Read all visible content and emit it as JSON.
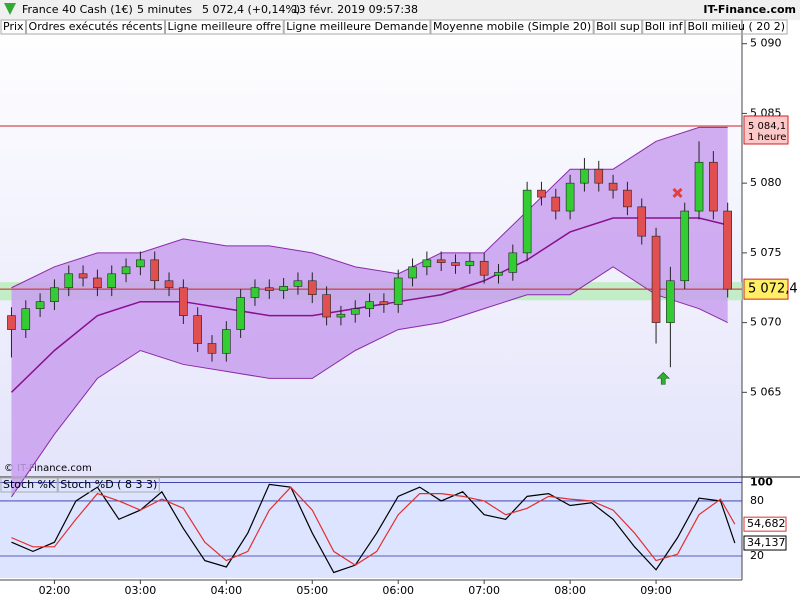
{
  "header": {
    "instrument": "France 40 Cash (1€)",
    "period": "5 minutes",
    "quote": "5 072,4 (+0,14%)",
    "timestamp": "13 févr. 2019 09:57:38",
    "brand": "IT-Finance.com",
    "watermark": "© IT-Finance.com"
  },
  "chart_data": [
    {
      "type": "candlestick",
      "legend": [
        {
          "name": "Prix",
          "color": "#000000"
        },
        {
          "name": "Ordres exécutés récents",
          "color": "#e06060"
        },
        {
          "name": "Ligne meilleure offre",
          "color": "#60d060"
        },
        {
          "name": "Ligne meilleure Demande",
          "color": "#e06060"
        },
        {
          "name": "Moyenne mobile (Simple 20)",
          "color": "#c00030"
        },
        {
          "name": "Boll sup",
          "color": "#2020c0"
        },
        {
          "name": "Boll inf",
          "color": "#2020c0"
        },
        {
          "name": "Boll milieu ( 20 2)",
          "color": "#2020c0"
        }
      ],
      "xlim": [
        "01:22",
        "10:00"
      ],
      "ylim": [
        5059,
        5091.7
      ],
      "yticks": [
        {
          "value": 5065,
          "label": "5 065"
        },
        {
          "value": 5070,
          "label": "5 070"
        },
        {
          "value": 5075,
          "label": "5 075"
        },
        {
          "value": 5080,
          "label": "5 080"
        },
        {
          "value": 5085,
          "label": "5 085"
        },
        {
          "value": 5090,
          "label": "5 090"
        }
      ],
      "candles": {
        "up_color": "#33cc33",
        "down_color": "#e05050",
        "x": [
          "01:30",
          "01:40",
          "01:50",
          "02:00",
          "02:10",
          "02:20",
          "02:30",
          "02:40",
          "02:50",
          "03:00",
          "03:10",
          "03:20",
          "03:30",
          "03:40",
          "03:50",
          "04:00",
          "04:10",
          "04:20",
          "04:30",
          "04:40",
          "04:50",
          "05:00",
          "05:10",
          "05:20",
          "05:30",
          "05:40",
          "05:50",
          "06:00",
          "06:10",
          "06:20",
          "06:30",
          "06:40",
          "06:50",
          "07:00",
          "07:10",
          "07:20",
          "07:30",
          "07:40",
          "07:50",
          "08:00",
          "08:10",
          "08:20",
          "08:30",
          "08:40",
          "08:50",
          "09:00",
          "09:10",
          "09:20",
          "09:30",
          "09:40",
          "09:50"
        ],
        "open": [
          5070.5,
          5069.5,
          5071,
          5071.5,
          5072.5,
          5073.5,
          5073.2,
          5072.5,
          5073.5,
          5074,
          5074.5,
          5073,
          5072.5,
          5070.5,
          5068.5,
          5067.8,
          5069.5,
          5071.8,
          5072.5,
          5072.3,
          5072.6,
          5073,
          5072,
          5070.4,
          5070.6,
          5071,
          5071.5,
          5071.3,
          5073.2,
          5074,
          5074.5,
          5074.3,
          5074.1,
          5074.4,
          5073.4,
          5073.6,
          5075,
          5079.5,
          5079,
          5078,
          5080,
          5081,
          5080,
          5079.5,
          5078.3,
          5076.2,
          5070,
          5073,
          5078,
          5081.5,
          5078
        ],
        "high": [
          5071.1,
          5071.6,
          5072.1,
          5073.1,
          5074.1,
          5074.1,
          5073.8,
          5074.1,
          5074.6,
          5075.1,
          5075.1,
          5073.6,
          5073.1,
          5071.1,
          5069.1,
          5070.1,
          5072.4,
          5073.1,
          5073.1,
          5073.2,
          5073.6,
          5073.6,
          5072.6,
          5071.2,
          5071.6,
          5072.1,
          5072.1,
          5073.8,
          5074.6,
          5075.1,
          5075.1,
          5074.9,
          5075,
          5075,
          5074.2,
          5075.6,
          5080.1,
          5080.1,
          5079.6,
          5080.6,
          5081.8,
          5081.6,
          5080.6,
          5080.1,
          5078.9,
          5076.8,
          5074,
          5078.6,
          5083,
          5082.3,
          5078.6
        ],
        "low": [
          5067.5,
          5068.9,
          5070.4,
          5070.9,
          5071.9,
          5072.6,
          5071.9,
          5071.9,
          5072.9,
          5073.4,
          5072.4,
          5071.9,
          5069.9,
          5067.9,
          5067.2,
          5067.2,
          5068.9,
          5071.2,
          5071.7,
          5071.7,
          5072,
          5071.4,
          5069.8,
          5069.8,
          5070,
          5070.4,
          5070.7,
          5070.7,
          5072.6,
          5073.4,
          5073.7,
          5073.5,
          5073.5,
          5072.8,
          5072.8,
          5073,
          5074.4,
          5078.4,
          5077.4,
          5077.4,
          5079.4,
          5079.4,
          5078.9,
          5077.7,
          5075.6,
          5068.5,
          5066.8,
          5072.4,
          5077.4,
          5077.4,
          5071.8
        ],
        "close": [
          5069.5,
          5071,
          5071.5,
          5072.5,
          5073.5,
          5073.2,
          5072.5,
          5073.5,
          5074,
          5074.5,
          5073,
          5072.5,
          5070.5,
          5068.5,
          5067.8,
          5069.5,
          5071.8,
          5072.5,
          5072.3,
          5072.6,
          5073,
          5072,
          5070.4,
          5070.6,
          5071,
          5071.5,
          5071.3,
          5073.2,
          5074,
          5074.5,
          5074.3,
          5074.1,
          5074.4,
          5073.4,
          5073.6,
          5075,
          5079.5,
          5079,
          5078,
          5080,
          5081,
          5080,
          5079.5,
          5078.3,
          5076.2,
          5070,
          5073,
          5078,
          5081.5,
          5078,
          5072.4
        ]
      },
      "x": [
        "01:30",
        "02:00",
        "02:30",
        "03:00",
        "03:30",
        "04:00",
        "04:30",
        "05:00",
        "05:30",
        "06:00",
        "06:30",
        "07:00",
        "07:30",
        "08:00",
        "08:30",
        "09:00",
        "09:30",
        "09:50"
      ],
      "band_fill": "#c9a0ee",
      "series": [
        {
          "name": "Boll sup",
          "color": "#8a2aa8",
          "values": [
            5072.5,
            5074,
            5075,
            5075,
            5076,
            5075.5,
            5075.5,
            5075,
            5074,
            5073.5,
            5075,
            5075,
            5078,
            5081,
            5081,
            5083,
            5084,
            5084
          ]
        },
        {
          "name": "Boll inf",
          "color": "#8a2aa8",
          "values": [
            5057.5,
            5062,
            5066,
            5068,
            5067,
            5066.5,
            5066,
            5066,
            5068,
            5069.5,
            5070,
            5071,
            5072,
            5072,
            5074,
            5072,
            5071,
            5070
          ]
        },
        {
          "name": "Boll milieu ( 20 2)",
          "color": "#8a1090",
          "values": [
            5065,
            5068,
            5070.5,
            5071.5,
            5071.5,
            5071,
            5070.5,
            5070.5,
            5071,
            5071.5,
            5072,
            5073,
            5074.5,
            5076.5,
            5077.5,
            5077.5,
            5077.5,
            5077
          ]
        }
      ],
      "offer_band": [
        5071.6,
        5072.9
      ],
      "hlines": [
        {
          "value": 5084.1,
          "label": "5 084,1",
          "note": "1 heure",
          "color": "#d02020",
          "box": "#ffc8c8"
        },
        {
          "value": 5072.4,
          "label": "5 072,4",
          "color": "#d02020",
          "box": "#ffee66"
        }
      ],
      "signals": [
        {
          "x": "09:15",
          "y": 5079.3,
          "kind": "sell",
          "color": "#e04040"
        },
        {
          "x": "09:05",
          "y": 5066,
          "kind": "buy",
          "color": "#30b030"
        }
      ]
    },
    {
      "type": "line",
      "xlim": [
        "01:22",
        "10:00"
      ],
      "xticks": [
        "02:00",
        "03:00",
        "04:00",
        "05:00",
        "06:00",
        "07:00",
        "08:00",
        "09:00"
      ],
      "ylim": [
        -4,
        105
      ],
      "yticks": [
        20,
        80,
        100
      ],
      "x": [
        "01:30",
        "01:45",
        "02:00",
        "02:15",
        "02:30",
        "02:45",
        "03:00",
        "03:15",
        "03:30",
        "03:45",
        "04:00",
        "04:15",
        "04:30",
        "04:45",
        "05:00",
        "05:15",
        "05:30",
        "05:45",
        "06:00",
        "06:15",
        "06:30",
        "06:45",
        "07:00",
        "07:15",
        "07:30",
        "07:45",
        "08:00",
        "08:15",
        "08:30",
        "08:45",
        "09:00",
        "09:15",
        "09:30",
        "09:45",
        "09:55"
      ],
      "series": [
        {
          "name": "Stoch %K",
          "color": "#000000",
          "values": [
            35,
            25,
            35,
            80,
            95,
            60,
            70,
            90,
            50,
            15,
            8,
            45,
            98,
            95,
            45,
            2,
            10,
            45,
            85,
            95,
            80,
            90,
            65,
            60,
            85,
            88,
            75,
            78,
            60,
            30,
            5,
            40,
            83,
            80,
            34.137
          ],
          "last_label": "34,137"
        },
        {
          "name": "Stoch %D ( 8 3 3)",
          "color": "#e03030",
          "values": [
            40,
            30,
            30,
            60,
            88,
            80,
            70,
            82,
            72,
            35,
            15,
            25,
            70,
            95,
            70,
            25,
            10,
            25,
            65,
            88,
            88,
            85,
            80,
            65,
            72,
            85,
            82,
            80,
            70,
            45,
            15,
            22,
            65,
            82,
            54.682
          ],
          "last_label": "54,682"
        }
      ]
    }
  ]
}
